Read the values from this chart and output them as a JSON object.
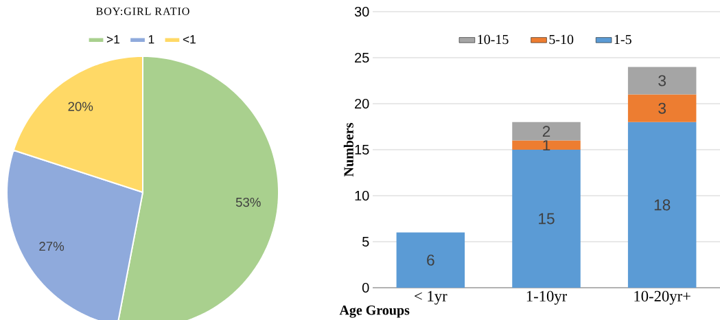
{
  "chart_data": [
    {
      "type": "pie",
      "title": "BOY:GIRL RATIO",
      "categories": [
        ">1",
        "1",
        "<1"
      ],
      "values": [
        53,
        27,
        20
      ],
      "colors": [
        "#a9d08e",
        "#8faadc",
        "#ffd966"
      ],
      "value_labels": [
        "53%",
        "27%",
        "20%"
      ],
      "legend": "top"
    },
    {
      "type": "bar",
      "stacked": true,
      "xlabel": "Age Groups",
      "ylabel": "Numbers",
      "categories": [
        "< 1yr",
        "1-10yr",
        "10-20yr+"
      ],
      "series": [
        {
          "name": "1-5",
          "color": "#5b9bd5",
          "values": [
            6,
            15,
            18
          ]
        },
        {
          "name": "5-10",
          "color": "#ed7d31",
          "values": [
            null,
            1,
            3
          ]
        },
        {
          "name": "10-15",
          "color": "#a5a5a5",
          "values": [
            null,
            2,
            3
          ]
        }
      ],
      "ylim": [
        0,
        30
      ],
      "yticks": [
        0,
        5,
        10,
        15,
        20,
        25,
        30
      ],
      "grid": "y",
      "legend": "top",
      "data_labels": true
    }
  ]
}
